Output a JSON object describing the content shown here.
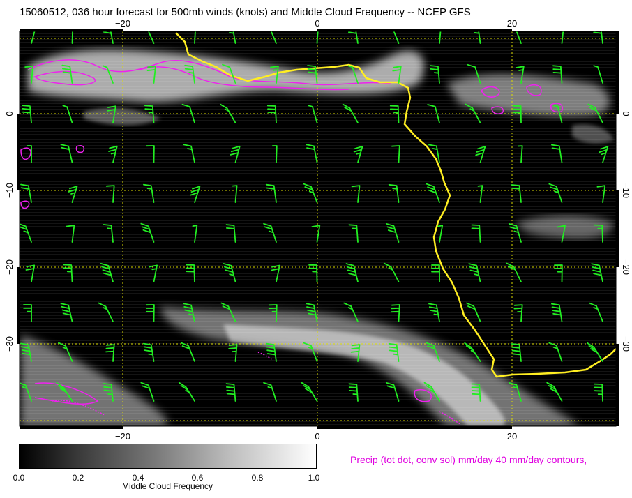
{
  "title": "15060512, 036 hour forecast for 500mb winds (knots) and Middle Cloud Frequency -- NCEP GFS",
  "map": {
    "lon_range": [
      -31,
      31
    ],
    "lat_range": [
      -40,
      11
    ],
    "lon_ticks": [
      "−20",
      "0",
      "20"
    ],
    "lat_ticks": [
      "0",
      "−10",
      "−20",
      "−30"
    ],
    "gridlines": "dotted-yellow",
    "colors": {
      "background": "#000000",
      "cloud": "#e6e6e6",
      "wind_barbs": "#22ee22",
      "coastline": "#ffee22",
      "precip_contours": "#ee22ee",
      "grid": "#dddd00"
    }
  },
  "colorbar": {
    "label": "Middle Cloud Frequency",
    "ticks": [
      "0.0",
      "0.2",
      "0.4",
      "0.6",
      "0.8",
      "1.0"
    ],
    "range": [
      0,
      1
    ]
  },
  "precip_note": "Precip (tot dot, conv sol) mm/day 40 mm/day contours,"
}
